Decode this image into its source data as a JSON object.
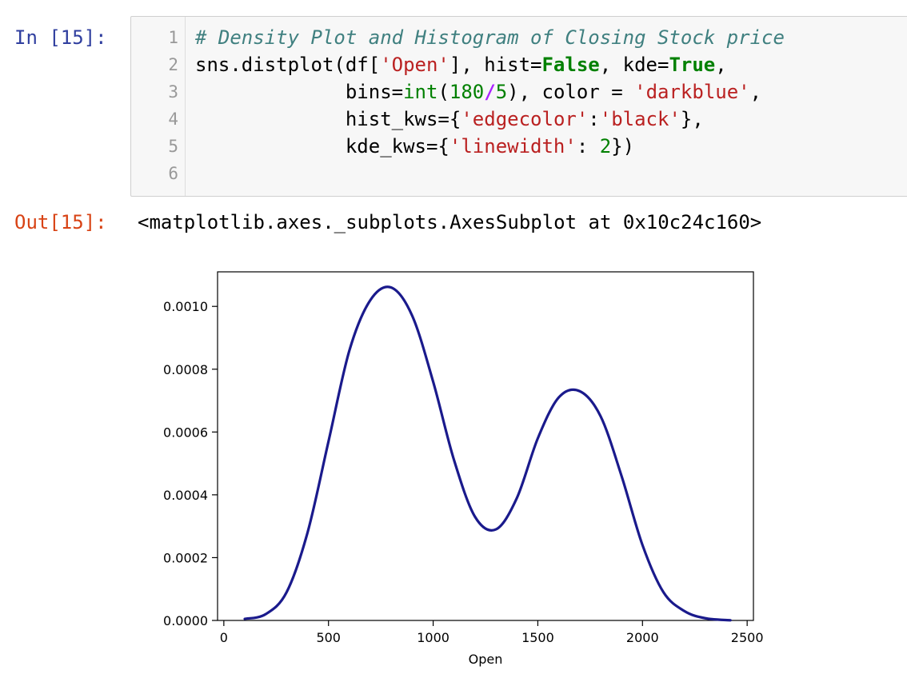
{
  "cell": {
    "in_prompt": "In [15]:",
    "out_prompt": "Out[15]:",
    "line_numbers": [
      "1",
      "2",
      "3",
      "4",
      "5",
      "6"
    ],
    "code": {
      "l1_comment": "# Density Plot and Histogram of Closing Stock price",
      "l2_a": "sns.distplot(df[",
      "l2_str": "'Open'",
      "l2_b": "], hist=",
      "l2_false": "False",
      "l2_c": ", kde=",
      "l2_true": "True",
      "l2_d": ",",
      "l3_indent": "             bins=",
      "l3_int": "int",
      "l3_paren": "(",
      "l3_n180": "180",
      "l3_div": "/",
      "l3_n5": "5",
      "l3_b": "), color = ",
      "l3_str": "'darkblue'",
      "l3_c": ",",
      "l4_indent": "             hist_kws={",
      "l4_str1": "'edgecolor'",
      "l4_colon": ":",
      "l4_str2": "'black'",
      "l4_end": "},",
      "l5_indent": "             kde_kws={",
      "l5_str": "'linewidth'",
      "l5_colon": ": ",
      "l5_num": "2",
      "l5_end": "})"
    },
    "output_text": "<matplotlib.axes._subplots.AxesSubplot at 0x10c24c160>"
  },
  "chart_data": {
    "type": "line",
    "title": "",
    "xlabel": "Open",
    "ylabel": "",
    "xlim": [
      -30,
      2530
    ],
    "ylim": [
      0,
      0.00111
    ],
    "x_ticks": [
      0,
      500,
      1000,
      1500,
      2000,
      2500
    ],
    "x_tick_labels": [
      "0",
      "500",
      "1000",
      "1500",
      "2000",
      "2500"
    ],
    "y_ticks": [
      0,
      0.0002,
      0.0004,
      0.0006,
      0.0008,
      0.001
    ],
    "y_tick_labels": [
      "0.0000",
      "0.0002",
      "0.0004",
      "0.0006",
      "0.0008",
      "0.0010"
    ],
    "grid": false,
    "line_color": "#1a1a8c",
    "series": [
      {
        "x": [
          100,
          200,
          300,
          400,
          500,
          600,
          700,
          800,
          900,
          1000,
          1100,
          1200,
          1300,
          1400,
          1500,
          1600,
          1700,
          1800,
          1900,
          2000,
          2100,
          2200,
          2300,
          2420
        ],
        "values": [
          5e-06,
          2e-05,
          9e-05,
          0.00028,
          0.00057,
          0.00086,
          0.00102,
          0.00106,
          0.00097,
          0.00076,
          0.00051,
          0.00033,
          0.00029,
          0.00039,
          0.00058,
          0.00071,
          0.00073,
          0.00065,
          0.00046,
          0.00024,
          9e-05,
          3e-05,
          7e-06,
          5e-07
        ]
      }
    ]
  }
}
